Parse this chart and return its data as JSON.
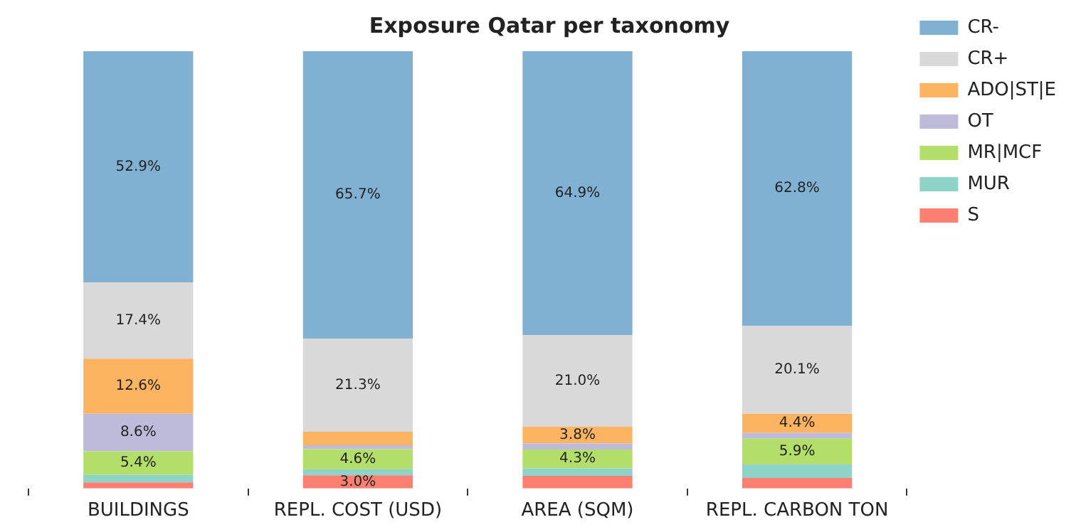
{
  "chart_data": {
    "type": "bar",
    "title": "Exposure Qatar per taxonomy",
    "categories": [
      "BUILDINGS",
      "REPL. COST (USD)",
      "AREA (SQM)",
      "REPL. CARBON TON"
    ],
    "stacked": true,
    "ylim": [
      0,
      100
    ],
    "tick_labels": "x",
    "legend": "top right",
    "series": [
      {
        "name": "S",
        "color": "#fb8072",
        "values": [
          1.4,
          3.0,
          2.9,
          2.4
        ],
        "value_labels": [
          null,
          "3.0%",
          null,
          null
        ]
      },
      {
        "name": "MUR",
        "color": "#8dd3c7",
        "values": [
          1.7,
          1.4,
          1.7,
          3.1
        ],
        "value_labels": [
          null,
          null,
          null,
          null
        ]
      },
      {
        "name": "MR|MCF",
        "color": "#b3de69",
        "values": [
          5.4,
          4.6,
          4.3,
          5.9
        ],
        "value_labels": [
          "5.4%",
          "4.6%",
          "4.3%",
          "5.9%"
        ]
      },
      {
        "name": "OT",
        "color": "#bebada",
        "values": [
          8.6,
          0.9,
          1.4,
          1.3
        ],
        "value_labels": [
          "8.6%",
          null,
          null,
          null
        ]
      },
      {
        "name": "ADO|ST|E",
        "color": "#fdb462",
        "values": [
          12.6,
          3.1,
          3.8,
          4.4
        ],
        "value_labels": [
          "12.6%",
          null,
          "3.8%",
          "4.4%"
        ]
      },
      {
        "name": "CR+",
        "color": "#d9d9d9",
        "values": [
          17.4,
          21.3,
          21.0,
          20.1
        ],
        "value_labels": [
          "17.4%",
          "21.3%",
          "21.0%",
          "20.1%"
        ]
      },
      {
        "name": "CR-",
        "color": "#80b1d3",
        "values": [
          52.9,
          65.7,
          64.9,
          62.8
        ],
        "value_labels": [
          "52.9%",
          "65.7%",
          "64.9%",
          "62.8%"
        ]
      }
    ]
  }
}
